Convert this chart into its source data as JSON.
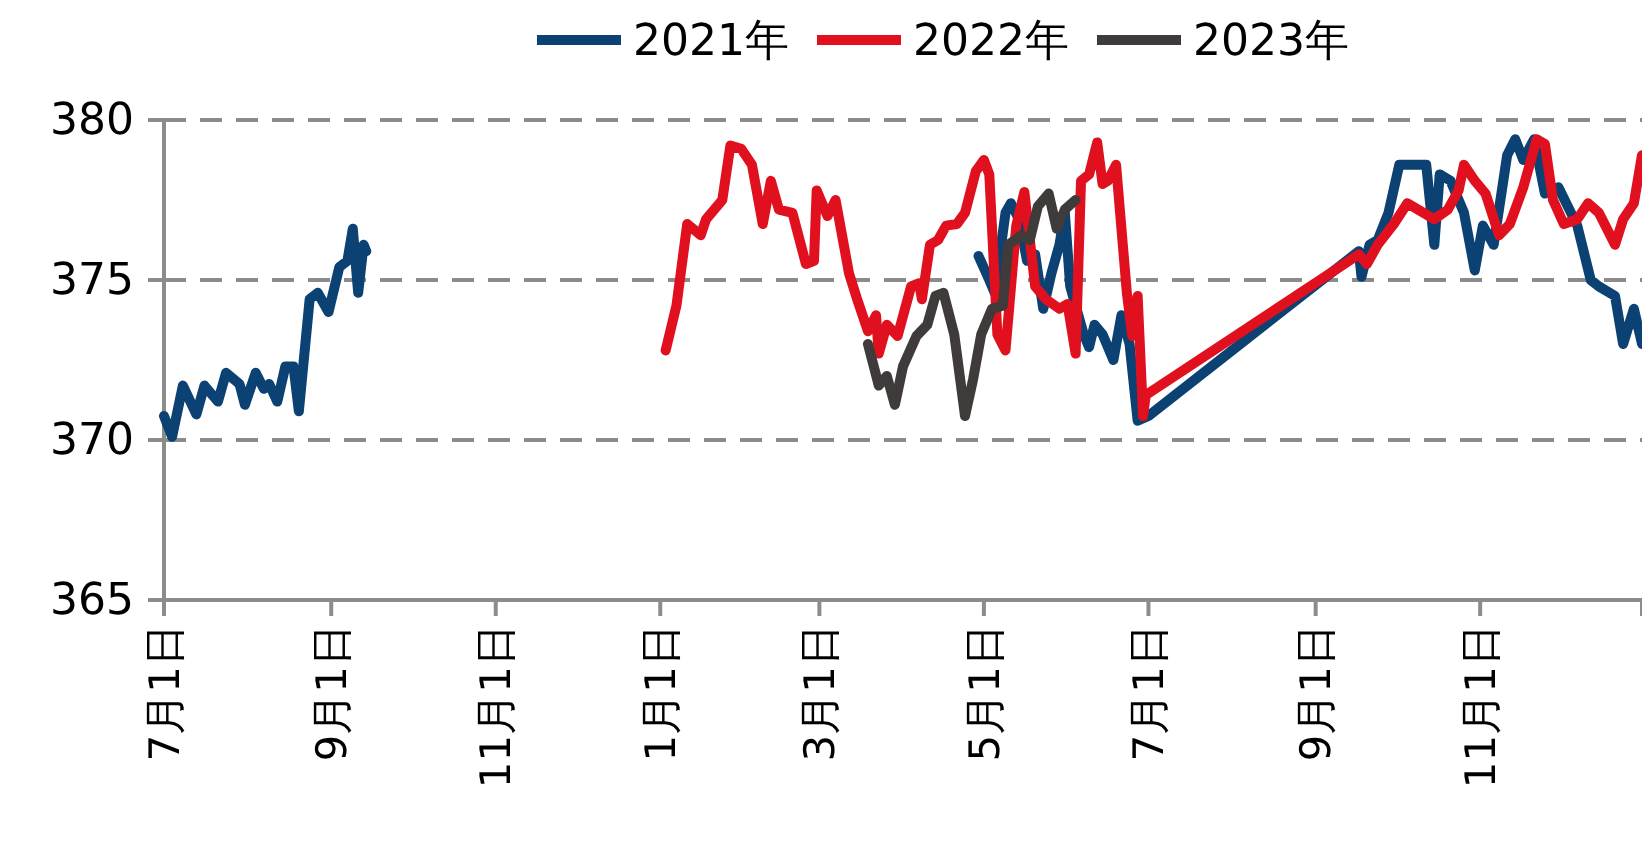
{
  "chart_data": {
    "type": "line",
    "xlim": [
      "2021-07-01",
      "2022-12-31"
    ],
    "ylim": [
      365,
      380
    ],
    "yticks": [
      365,
      370,
      375,
      380
    ],
    "xticks": [
      {
        "value": "2021-07-01",
        "label": "7月1日"
      },
      {
        "value": "2021-09-01",
        "label": "9月1日"
      },
      {
        "value": "2021-11-01",
        "label": "11月1日"
      },
      {
        "value": "2022-01-01",
        "label": "1月1日"
      },
      {
        "value": "2022-03-01",
        "label": "3月1日"
      },
      {
        "value": "2022-05-01",
        "label": "5月1日"
      },
      {
        "value": "2022-07-01",
        "label": "7月1日"
      },
      {
        "value": "2022-09-01",
        "label": "9月1日"
      },
      {
        "value": "2022-11-01",
        "label": "11月1日"
      }
    ],
    "grid": "y",
    "legend": "top",
    "line_style": "solid",
    "marker": "none",
    "series": [
      {
        "name": "2021年",
        "color": "#0b4173",
        "x": [
          "2021-07-01",
          "2021-07-04",
          "2021-07-08",
          "2021-07-13",
          "2021-07-16",
          "2021-07-21",
          "2021-07-24",
          "2021-07-29",
          "2021-07-31",
          "2021-08-04",
          "2021-08-07",
          "2021-08-09",
          "2021-08-12",
          "2021-08-15",
          "2021-08-18",
          "2021-08-20",
          "2021-08-24",
          "2021-08-27",
          "2021-08-31",
          "2021-09-04",
          "2021-09-07",
          "2021-09-09",
          "2021-09-11",
          "2021-09-13",
          "2021-09-14",
          "2022-01-17",
          "2022-04-29",
          "2022-05-03",
          "2022-05-05",
          "2022-05-09",
          "2022-05-11",
          "2022-05-14",
          "2022-05-17",
          "2022-05-20",
          "2022-05-23",
          "2022-05-26",
          "2022-05-29",
          "2022-05-31",
          "2022-06-02",
          "2022-06-07",
          "2022-06-09",
          "2022-06-11",
          "2022-06-14",
          "2022-06-18",
          "2022-06-21",
          "2022-06-24",
          "2022-06-27",
          "2022-07-01",
          "2022-09-17",
          "2022-09-18",
          "2022-09-21",
          "2022-09-24",
          "2022-09-28",
          "2022-10-02",
          "2022-10-12",
          "2022-10-15",
          "2022-10-17",
          "2022-10-21",
          "2022-10-26",
          "2022-10-30",
          "2022-11-02",
          "2022-11-06",
          "2022-11-11",
          "2022-11-14",
          "2022-11-17",
          "2022-11-21",
          "2022-11-25",
          "2022-11-30",
          "2022-12-07",
          "2022-12-12",
          "2022-12-15",
          "2022-12-21",
          "2022-12-24",
          "2022-12-28",
          "2022-12-31"
        ],
        "values": [
          370.75,
          370.1,
          371.7,
          370.8,
          371.7,
          371.2,
          372.1,
          371.75,
          371.1,
          372.1,
          371.6,
          371.75,
          371.2,
          372.3,
          372.3,
          370.9,
          374.4,
          374.6,
          374.0,
          375.4,
          375.6,
          376.6,
          374.6,
          376.1,
          375.9,
          null,
          375.75,
          375.0,
          374.6,
          377.1,
          377.4,
          376.9,
          375.6,
          375.8,
          374.1,
          375.2,
          376.1,
          377.1,
          374.8,
          373.3,
          372.9,
          373.6,
          373.3,
          372.5,
          373.9,
          373.0,
          370.6,
          370.75,
          375.9,
          375.1,
          376.1,
          376.25,
          377.1,
          378.6,
          378.6,
          376.1,
          378.3,
          378.1,
          377.1,
          375.3,
          376.7,
          376.1,
          378.9,
          379.4,
          378.75,
          379.4,
          377.7,
          377.9,
          376.7,
          375.0,
          374.8,
          374.5,
          373.0,
          374.1,
          373.0
        ]
      },
      {
        "name": "2022年",
        "color": "#e0101e",
        "x": [
          "2022-01-03",
          "2022-01-07",
          "2022-01-11",
          "2022-01-16",
          "2022-01-18",
          "2022-01-24",
          "2022-01-27",
          "2022-01-31",
          "2022-02-04",
          "2022-02-08",
          "2022-02-11",
          "2022-02-14",
          "2022-02-19",
          "2022-02-24",
          "2022-02-27",
          "2022-02-28",
          "2022-03-04",
          "2022-03-07",
          "2022-03-12",
          "2022-03-15",
          "2022-03-19",
          "2022-03-22",
          "2022-03-23",
          "2022-03-26",
          "2022-03-30",
          "2022-04-04",
          "2022-04-07",
          "2022-04-08",
          "2022-04-11",
          "2022-04-14",
          "2022-04-17",
          "2022-04-21",
          "2022-04-24",
          "2022-04-28",
          "2022-05-01",
          "2022-05-03",
          "2022-05-06",
          "2022-05-09",
          "2022-05-13",
          "2022-05-16",
          "2022-05-20",
          "2022-05-24",
          "2022-05-29",
          "2022-06-01",
          "2022-06-04",
          "2022-06-06",
          "2022-06-09",
          "2022-06-12",
          "2022-06-14",
          "2022-06-16",
          "2022-06-19",
          "2022-06-23",
          "2022-06-25",
          "2022-06-27",
          "2022-06-29",
          "2022-06-30",
          "2022-09-17",
          "2022-09-20",
          "2022-09-24",
          "2022-09-30",
          "2022-10-05",
          "2022-10-09",
          "2022-10-15",
          "2022-10-20",
          "2022-10-24",
          "2022-10-26",
          "2022-10-30",
          "2022-11-03",
          "2022-11-08",
          "2022-11-12",
          "2022-11-17",
          "2022-11-22",
          "2022-11-25",
          "2022-11-28",
          "2022-12-02",
          "2022-12-07",
          "2022-12-11",
          "2022-12-15",
          "2022-12-21",
          "2022-12-24",
          "2022-12-28",
          "2022-12-31"
        ],
        "values": [
          372.8,
          374.2,
          376.75,
          376.4,
          376.9,
          377.5,
          379.2,
          379.1,
          378.6,
          376.75,
          378.1,
          377.2,
          377.1,
          375.5,
          375.6,
          377.8,
          377.0,
          377.5,
          375.2,
          374.4,
          373.4,
          373.9,
          372.7,
          373.6,
          373.25,
          374.8,
          374.9,
          374.4,
          376.1,
          376.25,
          376.7,
          376.75,
          377.1,
          378.4,
          378.75,
          378.3,
          373.3,
          372.8,
          376.7,
          377.75,
          374.8,
          374.4,
          374.1,
          374.25,
          372.7,
          378.1,
          378.3,
          379.3,
          378.0,
          378.1,
          378.6,
          374.6,
          373.25,
          374.5,
          370.75,
          371.4,
          375.8,
          375.5,
          376.1,
          376.75,
          377.4,
          377.2,
          376.9,
          377.2,
          377.8,
          378.6,
          378.1,
          377.7,
          376.4,
          376.75,
          377.9,
          379.4,
          379.25,
          377.5,
          376.75,
          376.9,
          377.4,
          377.1,
          376.1,
          376.9,
          377.4,
          378.9
        ]
      },
      {
        "name": "2023年",
        "color": "#3f3b3a",
        "x": [
          "2022-03-19",
          "2022-03-23",
          "2022-03-26",
          "2022-03-29",
          "2022-04-01",
          "2022-04-06",
          "2022-04-10",
          "2022-04-13",
          "2022-04-16",
          "2022-04-20",
          "2022-04-24",
          "2022-04-27",
          "2022-04-30",
          "2022-05-04",
          "2022-05-08",
          "2022-05-10",
          "2022-05-15",
          "2022-05-18",
          "2022-05-21",
          "2022-05-25",
          "2022-05-28",
          "2022-05-31",
          "2022-06-04"
        ],
        "values": [
          373.0,
          371.7,
          372.0,
          371.1,
          372.3,
          373.25,
          373.6,
          374.5,
          374.6,
          373.3,
          370.75,
          371.9,
          373.3,
          374.1,
          374.2,
          376.1,
          376.4,
          376.25,
          377.3,
          377.7,
          376.6,
          377.2,
          377.5
        ]
      }
    ]
  }
}
